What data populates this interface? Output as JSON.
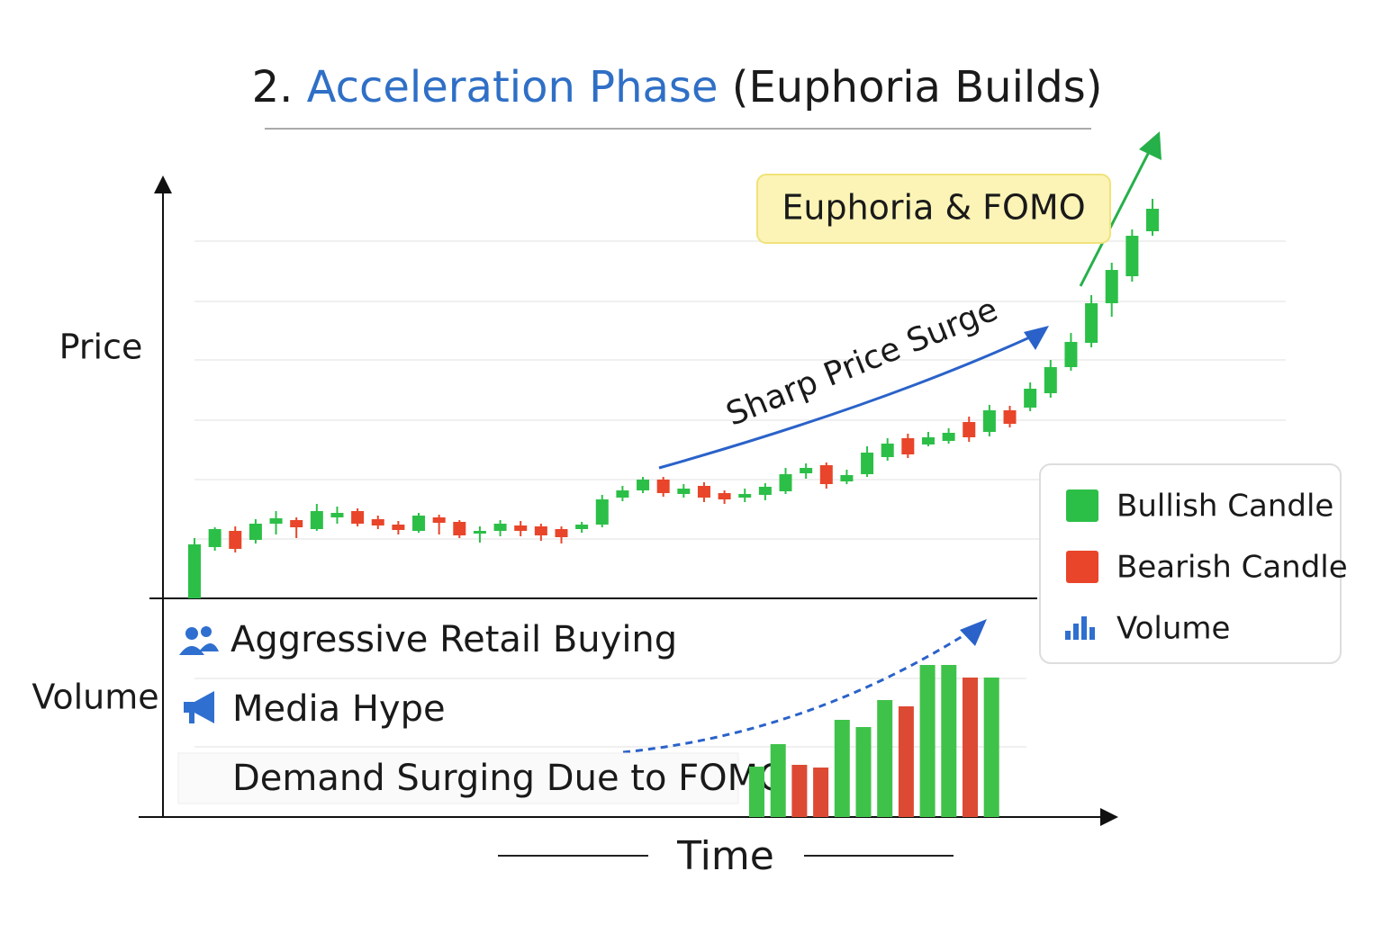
{
  "chart_data": {
    "type": "candlestick",
    "title": {
      "number": "2.",
      "highlight": "Acceleration Phase",
      "rest": "(Euphoria Builds)"
    },
    "y_label": "Price",
    "y2_label": "Volume",
    "x_label": "Time",
    "annotations": {
      "callout": "Euphoria & FOMO",
      "trend": "Sharp Price Surge"
    },
    "bullets": [
      "Aggressive Retail Buying",
      "Media Hype",
      "Demand Surging Due to FOMO"
    ],
    "legend": [
      {
        "name": "Bullish Candle",
        "color": "#2cbf48"
      },
      {
        "name": "Bearish Candle",
        "color": "#e8452a"
      },
      {
        "name": "Volume",
        "color": "#2f6fcf"
      }
    ],
    "ylim": [
      0,
      465
    ],
    "open": [
      0,
      57,
      75,
      65,
      83,
      87,
      77,
      90,
      97,
      88,
      82,
      75,
      90,
      85,
      73,
      75,
      81,
      80,
      77,
      77,
      82,
      112,
      120,
      132,
      116,
      125,
      117,
      112,
      115,
      119,
      139,
      148,
      130,
      138,
      157,
      178,
      171,
      175,
      196,
      185,
      209,
      212,
      228,
      257,
      284,
      328,
      358,
      408
    ],
    "high": [
      67,
      79,
      80,
      88,
      97,
      90,
      105,
      102,
      100,
      92,
      86,
      95,
      93,
      87,
      80,
      87,
      86,
      83,
      80,
      85,
      115,
      125,
      135,
      135,
      127,
      129,
      120,
      122,
      128,
      145,
      150,
      151,
      143,
      169,
      178,
      183,
      185,
      189,
      202,
      215,
      214,
      240,
      265,
      295,
      337,
      373,
      410,
      444
    ],
    "low": [
      0,
      53,
      51,
      61,
      71,
      67,
      75,
      83,
      80,
      77,
      71,
      73,
      71,
      67,
      62,
      69,
      69,
      64,
      61,
      73,
      79,
      108,
      117,
      113,
      112,
      107,
      105,
      107,
      109,
      116,
      133,
      122,
      127,
      135,
      153,
      156,
      169,
      172,
      174,
      180,
      190,
      208,
      223,
      253,
      279,
      313,
      352,
      403
    ],
    "close": [
      60,
      77,
      55,
      83,
      89,
      79,
      97,
      95,
      83,
      81,
      76,
      92,
      84,
      70,
      75,
      83,
      75,
      70,
      68,
      82,
      110,
      120,
      132,
      117,
      122,
      112,
      110,
      116,
      124,
      138,
      145,
      127,
      137,
      162,
      172,
      160,
      179,
      184,
      179,
      209,
      194,
      233,
      257,
      285,
      328,
      365,
      403,
      433
    ],
    "volume": {
      "ylim": [
        0,
        250
      ],
      "values": [
        56,
        81,
        58,
        55,
        108,
        100,
        130,
        123,
        169,
        169,
        155,
        155
      ],
      "colors": [
        "#3fc24a",
        "#3fc24a",
        "#dd4a33",
        "#dd4a33",
        "#3fc24a",
        "#3fc24a",
        "#3fc24a",
        "#dd4a33",
        "#3fc24a",
        "#3fc24a",
        "#dd4a33",
        "#3fc24a"
      ]
    }
  }
}
